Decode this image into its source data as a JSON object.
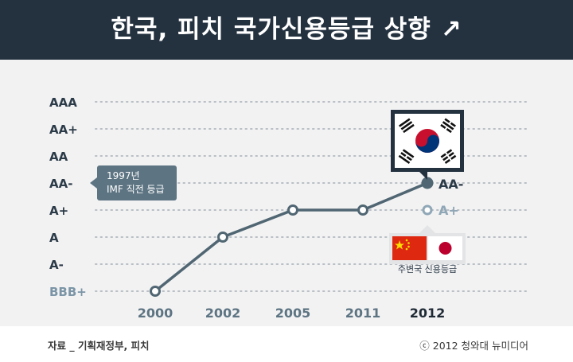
{
  "title": "한국, 피치 국가신용등급 상향 ↗",
  "chart_data": {
    "type": "line",
    "y_categories": [
      "BBB+",
      "A-",
      "A",
      "A+",
      "AA-",
      "AA",
      "AA+",
      "AAA"
    ],
    "x": [
      "2000",
      "2002",
      "2005",
      "2011",
      "2012"
    ],
    "series": [
      {
        "values": [
          "BBB+",
          "A",
          "A+",
          "A+",
          "AA-"
        ]
      }
    ],
    "previous_point": {
      "x": "2012",
      "value": "A+"
    },
    "grid": true,
    "annotations": {
      "imf": {
        "line1": "1997년",
        "line2": "IMF 직전 등급",
        "level": "AA-"
      },
      "end_label": "AA-",
      "prev_label": "A+",
      "neighbors": "주변국 신용등급"
    }
  },
  "colors": {
    "banner": "#243240",
    "line": "#506672",
    "axis_text": "#2c3b48",
    "bottom_tick": "#7b95a6",
    "annotation_box": "#5d7482",
    "prev_point": "#8fa7b6"
  },
  "icons": {
    "korea_flag": "korea-flag-icon",
    "china_flag": "china-flag-icon",
    "japan_flag": "japan-flag-icon"
  },
  "footer": {
    "source": "자료 _ 기획재정부, 피치",
    "copyright": "ⓒ 2012 청와대 뉴미디어"
  }
}
